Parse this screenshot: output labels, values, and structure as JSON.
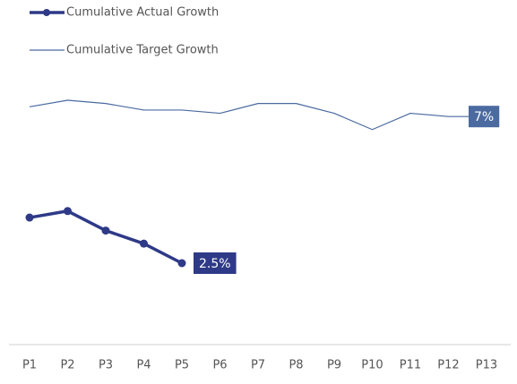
{
  "chart_data": {
    "type": "line",
    "categories": [
      "P1",
      "P2",
      "P3",
      "P4",
      "P5",
      "P6",
      "P7",
      "P8",
      "P9",
      "P10",
      "P11",
      "P12",
      "P13"
    ],
    "series": [
      {
        "name": "Cumulative Actual Growth",
        "color": "#2e3a87",
        "values": [
          3.9,
          4.1,
          3.5,
          3.1,
          2.5,
          null,
          null,
          null,
          null,
          null,
          null,
          null,
          null
        ],
        "value_labels": [
          null,
          null,
          null,
          null,
          "2.5%",
          null,
          null,
          null,
          null,
          null,
          null,
          null,
          null
        ]
      },
      {
        "name": "Cumulative Target Growth",
        "color": "#4a6aa0",
        "values": [
          7.3,
          7.5,
          7.4,
          7.2,
          7.2,
          7.1,
          7.4,
          7.4,
          7.1,
          6.6,
          7.1,
          7.0,
          7
        ],
        "value_labels": [
          null,
          null,
          null,
          null,
          null,
          null,
          null,
          null,
          null,
          null,
          null,
          null,
          "7%"
        ]
      }
    ],
    "ylim": [
      0,
      10
    ],
    "legend": "top-left"
  }
}
